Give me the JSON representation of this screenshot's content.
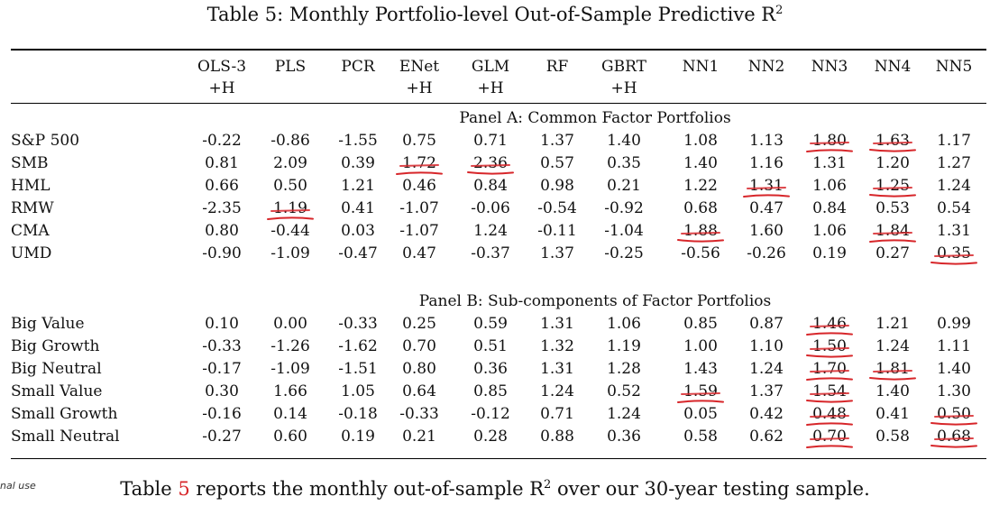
{
  "caption": {
    "text": "Table 5: Monthly Portfolio-level Out-of-Sample Predictive R",
    "sup": "2"
  },
  "columns": [
    {
      "line1": "OLS-3",
      "line2": "+H"
    },
    {
      "line1": "PLS",
      "line2": ""
    },
    {
      "line1": "PCR",
      "line2": ""
    },
    {
      "line1": "ENet",
      "line2": "+H"
    },
    {
      "line1": "GLM",
      "line2": "+H"
    },
    {
      "line1": "RF",
      "line2": ""
    },
    {
      "line1": "GBRT",
      "line2": "+H"
    },
    {
      "line1": "NN1",
      "line2": ""
    },
    {
      "line1": "NN2",
      "line2": ""
    },
    {
      "line1": "NN3",
      "line2": ""
    },
    {
      "line1": "NN4",
      "line2": ""
    },
    {
      "line1": "NN5",
      "line2": ""
    }
  ],
  "panels": [
    {
      "title": "Panel A: Common Factor Portfolios",
      "rows": [
        {
          "label": "S&P 500",
          "values": [
            "-0.22",
            "-0.86",
            "-1.55",
            "0.75",
            "0.71",
            "1.37",
            "1.40",
            "1.08",
            "1.13",
            "1.80",
            "1.63",
            "1.17"
          ]
        },
        {
          "label": "SMB",
          "values": [
            "0.81",
            "2.09",
            "0.39",
            "1.72",
            "2.36",
            "0.57",
            "0.35",
            "1.40",
            "1.16",
            "1.31",
            "1.20",
            "1.27"
          ]
        },
        {
          "label": "HML",
          "values": [
            "0.66",
            "0.50",
            "1.21",
            "0.46",
            "0.84",
            "0.98",
            "0.21",
            "1.22",
            "1.31",
            "1.06",
            "1.25",
            "1.24"
          ]
        },
        {
          "label": "RMW",
          "values": [
            "-2.35",
            "1.19",
            "0.41",
            "-1.07",
            "-0.06",
            "-0.54",
            "-0.92",
            "0.68",
            "0.47",
            "0.84",
            "0.53",
            "0.54"
          ]
        },
        {
          "label": "CMA",
          "values": [
            "0.80",
            "-0.44",
            "0.03",
            "-1.07",
            "1.24",
            "-0.11",
            "-1.04",
            "1.88",
            "1.60",
            "1.06",
            "1.84",
            "1.31"
          ]
        },
        {
          "label": "UMD",
          "values": [
            "-0.90",
            "-1.09",
            "-0.47",
            "0.47",
            "-0.37",
            "1.37",
            "-0.25",
            "-0.56",
            "-0.26",
            "0.19",
            "0.27",
            "0.35"
          ]
        }
      ]
    },
    {
      "title": "Panel B: Sub-components of Factor Portfolios",
      "rows": [
        {
          "label": "Big Value",
          "values": [
            "0.10",
            "0.00",
            "-0.33",
            "0.25",
            "0.59",
            "1.31",
            "1.06",
            "0.85",
            "0.87",
            "1.46",
            "1.21",
            "0.99"
          ]
        },
        {
          "label": "Big Growth",
          "values": [
            "-0.33",
            "-1.26",
            "-1.62",
            "0.70",
            "0.51",
            "1.32",
            "1.19",
            "1.00",
            "1.10",
            "1.50",
            "1.24",
            "1.11"
          ]
        },
        {
          "label": "Big Neutral",
          "values": [
            "-0.17",
            "-1.09",
            "-1.51",
            "0.80",
            "0.36",
            "1.31",
            "1.28",
            "1.43",
            "1.24",
            "1.70",
            "1.81",
            "1.40"
          ]
        },
        {
          "label": "Small Value",
          "values": [
            "0.30",
            "1.66",
            "1.05",
            "0.64",
            "0.85",
            "1.24",
            "0.52",
            "1.59",
            "1.37",
            "1.54",
            "1.40",
            "1.30"
          ]
        },
        {
          "label": "Small Growth",
          "values": [
            "-0.16",
            "0.14",
            "-0.18",
            "-0.33",
            "-0.12",
            "0.71",
            "1.24",
            "0.05",
            "0.42",
            "0.48",
            "0.41",
            "0.50"
          ]
        },
        {
          "label": "Small Neutral",
          "values": [
            "-0.27",
            "0.60",
            "0.19",
            "0.21",
            "0.28",
            "0.88",
            "0.36",
            "0.58",
            "0.62",
            "0.70",
            "0.58",
            "0.68"
          ]
        }
      ]
    }
  ],
  "underlined": [
    {
      "panel": 0,
      "row": 0,
      "col": 9
    },
    {
      "panel": 0,
      "row": 0,
      "col": 10
    },
    {
      "panel": 0,
      "row": 1,
      "col": 3
    },
    {
      "panel": 0,
      "row": 1,
      "col": 4
    },
    {
      "panel": 0,
      "row": 2,
      "col": 8
    },
    {
      "panel": 0,
      "row": 2,
      "col": 10
    },
    {
      "panel": 0,
      "row": 3,
      "col": 1
    },
    {
      "panel": 0,
      "row": 4,
      "col": 7
    },
    {
      "panel": 0,
      "row": 4,
      "col": 10
    },
    {
      "panel": 0,
      "row": 5,
      "col": 11
    },
    {
      "panel": 1,
      "row": 0,
      "col": 9
    },
    {
      "panel": 1,
      "row": 1,
      "col": 9
    },
    {
      "panel": 1,
      "row": 2,
      "col": 9
    },
    {
      "panel": 1,
      "row": 2,
      "col": 10
    },
    {
      "panel": 1,
      "row": 3,
      "col": 7
    },
    {
      "panel": 1,
      "row": 3,
      "col": 9
    },
    {
      "panel": 1,
      "row": 4,
      "col": 9
    },
    {
      "panel": 1,
      "row": 4,
      "col": 11
    },
    {
      "panel": 1,
      "row": 5,
      "col": 9
    },
    {
      "panel": 1,
      "row": 5,
      "col": 11
    }
  ],
  "annotation_color": "#d7262a",
  "side_note": "nal use",
  "body_text": {
    "before": "Table ",
    "ref": "5",
    "after": " reports the monthly out-of-sample R",
    "sup": "2",
    "tail": " over our 30-year testing sample."
  }
}
